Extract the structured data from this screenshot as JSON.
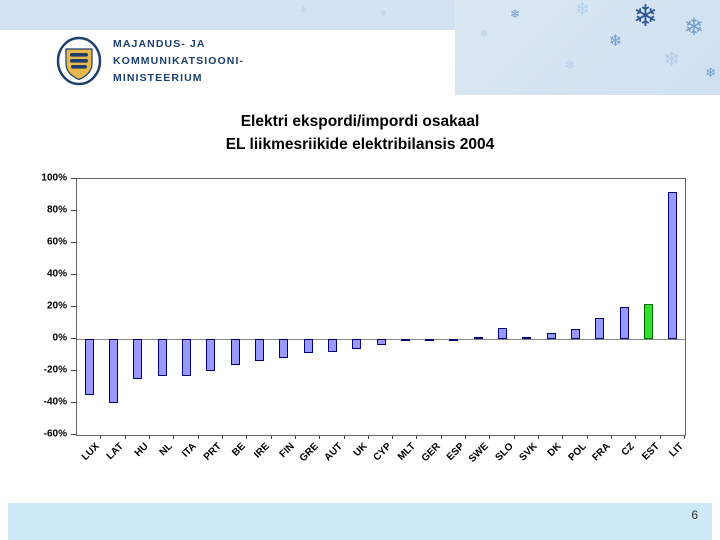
{
  "header": {
    "ministry_lines": [
      "MAJANDUS- JA",
      "KOMMUNIKATSIOONI-",
      "MINISTEERIUM"
    ]
  },
  "title": {
    "line1": "Elektri ekspordi/impordi osakaal",
    "line2": "EL liikmesriikide elektribilansis  2004"
  },
  "footer": {
    "page_number": "6"
  },
  "icons": {
    "snowflake": "❄"
  },
  "colors": {
    "accent_navy": "#1c3f6e",
    "header_blue": "#d4e3f1",
    "footer_blue": "#cde9f5",
    "bar": "#9999ff",
    "bar_border": "#00007f",
    "highlight_bar": "#2ce22c",
    "highlight_border": "#006600"
  },
  "chart_data": {
    "type": "bar",
    "title": "Elektri ekspordi/impordi osakaal EL liikmesriikide elektribilansis 2004",
    "xlabel": "",
    "ylabel": "",
    "categories": [
      "LUX",
      "LAT",
      "HU",
      "NL",
      "ITA",
      "PRT",
      "BE",
      "IRE",
      "FIN",
      "GRE",
      "AUT",
      "UK",
      "CYP",
      "MLT",
      "GER",
      "ESP",
      "SWE",
      "SLO",
      "SVK",
      "DK",
      "POL",
      "FRA",
      "CZ",
      "EST",
      "LIT"
    ],
    "values": [
      -35,
      -40,
      -25,
      -23,
      -23,
      -20,
      -16,
      -14,
      -12,
      -9,
      -8,
      -6,
      -4,
      -1,
      -1,
      -1,
      1,
      7,
      1,
      4,
      6,
      13,
      20,
      22,
      92
    ],
    "unit": "%",
    "highlight_category": "EST",
    "ylim": [
      -60,
      100
    ],
    "ytick_step": 20,
    "ytick_labels": [
      "100%",
      "80%",
      "60%",
      "40%",
      "20%",
      "0%",
      "-20%",
      "-40%",
      "-60%"
    ],
    "grid": false,
    "legend": false
  }
}
